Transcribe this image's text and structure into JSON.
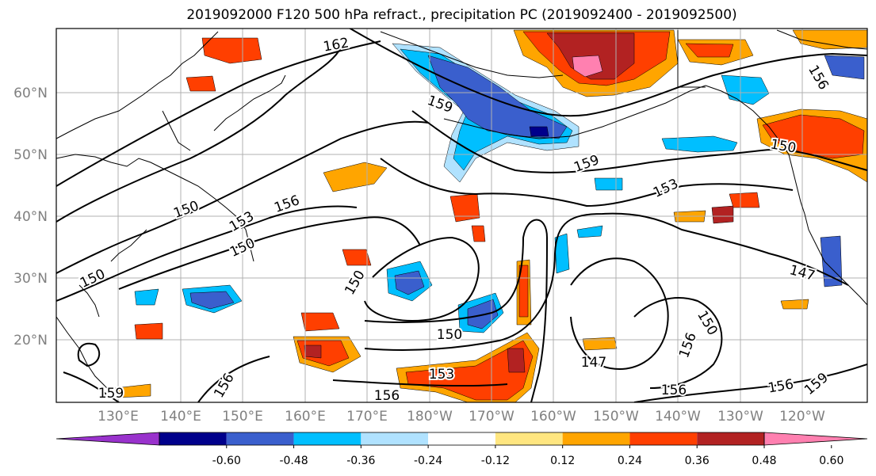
{
  "title": "2019092000 F120 500 hPa refract., precipitation PC (2019092400 - 2019092500)",
  "lat_labels": [
    "60°N",
    "50°N",
    "40°N",
    "30°N",
    "20°N"
  ],
  "lon_labels": [
    "130°E",
    "140°E",
    "150°E",
    "160°E",
    "170°E",
    "180°W",
    "170°W",
    "160°W",
    "150°W",
    "140°W",
    "130°W",
    "120°W"
  ],
  "contour_labels": [
    "162",
    "159",
    "159",
    "153",
    "156",
    "150",
    "153",
    "150",
    "150",
    "150",
    "150",
    "150",
    "156",
    "147",
    "153",
    "156",
    "156",
    "156",
    "156",
    "159",
    "147",
    "150",
    "156",
    "159"
  ],
  "colorbar": {
    "ticks": [
      "-0.60",
      "-0.48",
      "-0.36",
      "-0.24",
      "-0.12",
      "0.12",
      "0.24",
      "0.36",
      "0.48",
      "0.60"
    ],
    "colors": [
      "#9932cc",
      "#00008b",
      "#3a5fcd",
      "#00bfff",
      "#b0e2ff",
      "#ffffff",
      "#ffe680",
      "#ffa500",
      "#ff3f00",
      "#b22222",
      "#ff80b0"
    ]
  },
  "colors": {
    "frame": "#000000",
    "grid": "#b0b0b0",
    "axis_label": "#808080",
    "contour": "#000000"
  }
}
